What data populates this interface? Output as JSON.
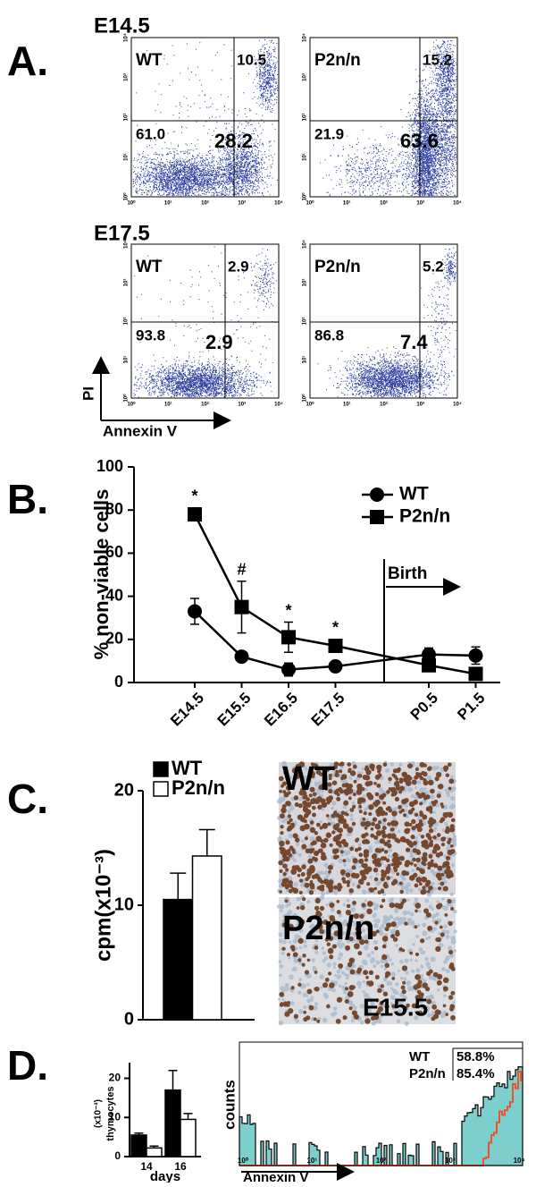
{
  "panel_labels": [
    "A.",
    "B.",
    "C.",
    "D."
  ],
  "flow": {
    "axis_ticks": [
      "10⁰",
      "10¹",
      "10²",
      "10³",
      "10⁴"
    ],
    "x_axis_label": "Annexin V",
    "y_axis_label": "PI",
    "timepoints": [
      {
        "label": "E14.5",
        "plots": [
          {
            "genotype": "WT",
            "upper_right": "10.5",
            "lower_left": "61.0",
            "lower_right": "28.2"
          },
          {
            "genotype": "P2n/n",
            "upper_right": "15.2",
            "lower_left": "21.9",
            "lower_right": "63.6"
          }
        ]
      },
      {
        "label": "E17.5",
        "plots": [
          {
            "genotype": "WT",
            "upper_right": "2.9",
            "lower_left": "93.8",
            "lower_right": "2.9"
          },
          {
            "genotype": "P2n/n",
            "upper_right": "5.2",
            "lower_left": "86.8",
            "lower_right": "7.4"
          }
        ]
      }
    ]
  },
  "chart_data": [
    {
      "type": "line",
      "ylabel": "% non-viable cells",
      "categories": [
        "E14.5",
        "E15.5",
        "E16.5",
        "E17.5",
        "P0.5",
        "P1.5"
      ],
      "series": [
        {
          "name": "WT",
          "color": "#000000",
          "marker": "circle",
          "values": [
            33,
            12,
            6,
            7.5,
            13,
            12.5
          ],
          "errors": [
            6,
            2,
            3,
            2,
            3,
            4
          ]
        },
        {
          "name": "P2n/n",
          "color": "#000000",
          "marker": "square",
          "values": [
            78,
            35,
            21,
            17,
            8,
            4
          ],
          "errors": [
            3,
            12,
            7,
            3,
            2,
            2
          ]
        }
      ],
      "ylim": [
        0,
        100
      ],
      "yticks": [
        0,
        20,
        40,
        60,
        80,
        100
      ],
      "annotations": [
        {
          "text": "*",
          "category": 0
        },
        {
          "text": "#",
          "category": 1
        },
        {
          "text": "*",
          "category": 2
        },
        {
          "text": "*",
          "category": 3
        }
      ],
      "event_label": "Birth"
    },
    {
      "type": "bar",
      "ylabel": "cpm(x10⁻³)",
      "categories": [
        null
      ],
      "series": [
        {
          "name": "WT",
          "color": "#000000",
          "values": [
            10.5
          ],
          "errors": [
            2.3
          ]
        },
        {
          "name": "P2n/n",
          "color": "#ffffff",
          "values": [
            14.3
          ],
          "errors": [
            2.3
          ]
        }
      ],
      "ylim": [
        0,
        20
      ],
      "yticks": [
        0,
        10,
        20
      ]
    },
    {
      "type": "bar",
      "ylabel": "thymocytes",
      "yunit": "(x10⁻³)",
      "xlabel": "days",
      "categories": [
        "14",
        "16"
      ],
      "series": [
        {
          "name": "WT",
          "color": "#000000",
          "values": [
            5.5,
            17
          ],
          "errors": [
            0.5,
            5
          ]
        },
        {
          "name": "P2n/n",
          "color": "#ffffff",
          "values": [
            2.2,
            9.5
          ],
          "errors": [
            0.5,
            1.5
          ]
        }
      ],
      "ylim": [
        0,
        24
      ],
      "yticks": [
        0,
        10,
        20
      ]
    }
  ],
  "micrographs": [
    {
      "label": "WT"
    },
    {
      "label": "P2n/n",
      "stage": "E15.5"
    }
  ],
  "annexin_histogram": {
    "xticks": [
      "10⁰",
      "10¹",
      "10²",
      "10³",
      "10⁴"
    ],
    "xlabel": "Annexin V",
    "ylabel": "counts",
    "legend": [
      {
        "name": "WT",
        "color": "#7ccfcc",
        "value": "58.8%"
      },
      {
        "name": "P2n/n",
        "color": "#e8552c",
        "value": "85.4%"
      }
    ]
  }
}
